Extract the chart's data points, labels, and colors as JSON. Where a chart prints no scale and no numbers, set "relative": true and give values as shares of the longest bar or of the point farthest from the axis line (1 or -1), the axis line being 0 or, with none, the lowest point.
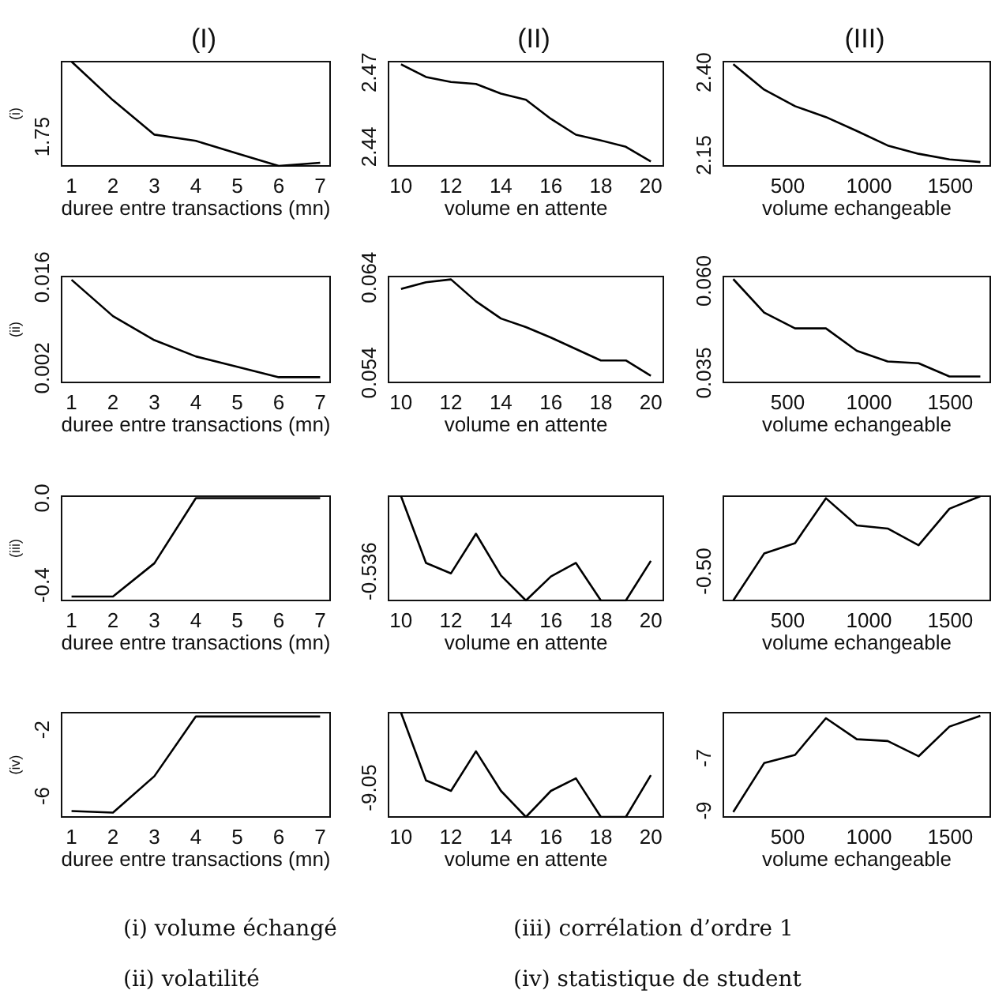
{
  "chart_data": [
    {
      "type": "line",
      "title": "(I)",
      "xlabel": "duree entre transactions (mn)",
      "ylabel": "(i)",
      "relative": true,
      "x": [
        1,
        2,
        3,
        4,
        5,
        6,
        7
      ],
      "values": [
        1,
        0.63,
        0.3,
        0.24,
        0.12,
        0,
        0.03
      ],
      "color": "#000000",
      "xlim": [
        0.76,
        7.24
      ],
      "xticks": [
        1,
        2,
        3,
        4,
        5,
        6,
        7
      ],
      "annotations": [
        "1.75"
      ]
    },
    {
      "type": "line",
      "title": "(II)",
      "xlabel": "volume en attente",
      "x": [
        10,
        11,
        12,
        13,
        14,
        15,
        16,
        17,
        18,
        19,
        20
      ],
      "values": [
        2.4733,
        2.4682,
        2.4662,
        2.4654,
        2.4615,
        2.459,
        2.4513,
        2.4449,
        2.4426,
        2.44,
        2.4341
      ],
      "color": "#000000",
      "xlim": [
        9.5,
        20.5
      ],
      "xticks": [
        10,
        12,
        14,
        16,
        18,
        20
      ],
      "ylim": [
        2.4323,
        2.4744
      ],
      "yticks": [
        2.44,
        2.47
      ]
    },
    {
      "type": "line",
      "title": "(III)",
      "xlabel": "volume echangeable",
      "x": [
        165,
        355,
        545,
        735,
        925,
        1115,
        1305,
        1495,
        1685
      ],
      "values": [
        2.425,
        2.348,
        2.298,
        2.265,
        2.223,
        2.179,
        2.154,
        2.137,
        2.129
      ],
      "color": "#000000",
      "xlim": [
        104,
        1746
      ],
      "xticks": [
        500,
        1000,
        1500
      ],
      "ylim": [
        2.1173,
        2.4327
      ],
      "yticks": [
        2.15,
        {
          "value": 2.4,
          "label": "2.40"
        }
      ]
    },
    {
      "type": "line",
      "xlabel": "duree entre transactions (mn)",
      "ylabel": "(ii)",
      "x": [
        1,
        2,
        3,
        4,
        5,
        6,
        7
      ],
      "values": [
        0.0156,
        0.01,
        0.0063,
        0.0038,
        0.0022,
        0.0006,
        0.0006
      ],
      "color": "#000000",
      "xlim": [
        0.76,
        7.24
      ],
      "xticks": [
        1,
        2,
        3,
        4,
        5,
        6,
        7
      ],
      "ylim": [
        -0.0002,
        0.0161
      ],
      "yticks": [
        0.002,
        0.016
      ]
    },
    {
      "type": "line",
      "xlabel": "volume en attente",
      "x": [
        10,
        11,
        12,
        13,
        14,
        15,
        16,
        17,
        18,
        19,
        20
      ],
      "values": [
        0.0628,
        0.0635,
        0.0638,
        0.0615,
        0.0597,
        0.0588,
        0.0577,
        0.0565,
        0.0553,
        0.0553,
        0.0537
      ],
      "color": "#000000",
      "xlim": [
        9.5,
        20.5
      ],
      "xticks": [
        10,
        12,
        14,
        16,
        18,
        20
      ],
      "ylim": [
        0.053,
        0.0641
      ],
      "yticks": [
        0.054,
        0.064
      ]
    },
    {
      "type": "line",
      "xlabel": "volume echangeable",
      "x": [
        165,
        355,
        545,
        735,
        925,
        1115,
        1305,
        1495,
        1685
      ],
      "values": [
        0.0605,
        0.0514,
        0.0471,
        0.0471,
        0.041,
        0.0381,
        0.0376,
        0.034,
        0.034
      ],
      "color": "#000000",
      "xlim": [
        104,
        1746
      ],
      "xticks": [
        500,
        1000,
        1500
      ],
      "ylim": [
        0.0324,
        0.0612
      ],
      "yticks": [
        0.035,
        {
          "value": 0.06,
          "label": "0.060"
        }
      ]
    },
    {
      "type": "line",
      "xlabel": "duree entre transactions (mn)",
      "ylabel": "(iii)",
      "x": [
        1,
        2,
        3,
        4,
        5,
        6,
        7
      ],
      "values": [
        -0.452,
        -0.452,
        -0.299,
        0,
        0,
        0,
        0
      ],
      "color": "#000000",
      "xlim": [
        0.76,
        7.24
      ],
      "xticks": [
        1,
        2,
        3,
        4,
        5,
        6,
        7
      ],
      "ylim": [
        -0.47,
        0.009
      ],
      "yticks": [
        -0.4,
        {
          "value": 0,
          "label": "0.0"
        }
      ]
    },
    {
      "type": "line",
      "xlabel": "volume en attente",
      "relative": true,
      "x": [
        10,
        11,
        12,
        13,
        14,
        15,
        16,
        17,
        18,
        19,
        20
      ],
      "values": [
        1,
        0.36,
        0.26,
        0.64,
        0.24,
        0,
        0.23,
        0.36,
        0,
        0,
        0.38
      ],
      "color": "#000000",
      "xlim": [
        9.5,
        20.5
      ],
      "xticks": [
        10,
        12,
        14,
        16,
        18,
        20
      ],
      "annotations": [
        "-0.536"
      ]
    },
    {
      "type": "line",
      "xlabel": "volume echangeable",
      "relative": true,
      "x": [
        165,
        355,
        545,
        735,
        925,
        1115,
        1305,
        1495,
        1685
      ],
      "values": [
        0,
        0.45,
        0.55,
        0.98,
        0.72,
        0.69,
        0.53,
        0.88,
        1
      ],
      "color": "#000000",
      "xlim": [
        104,
        1746
      ],
      "xticks": [
        500,
        1000,
        1500
      ],
      "annotations": [
        "-0.50"
      ]
    },
    {
      "type": "line",
      "xlabel": "duree entre transactions (mn)",
      "ylabel": "(iv)",
      "x": [
        1,
        2,
        3,
        4,
        5,
        6,
        7
      ],
      "values": [
        -6.9,
        -7.0,
        -4.8,
        -1.2,
        -1.2,
        -1.2,
        -1.2
      ],
      "color": "#000000",
      "xlim": [
        0.76,
        7.24
      ],
      "xticks": [
        1,
        2,
        3,
        4,
        5,
        6,
        7
      ],
      "ylim": [
        -7.26,
        -0.97
      ],
      "yticks": [
        -6,
        -2
      ]
    },
    {
      "type": "line",
      "xlabel": "volume en attente",
      "relative": true,
      "x": [
        10,
        11,
        12,
        13,
        14,
        15,
        16,
        17,
        18,
        19,
        20
      ],
      "values": [
        1,
        0.35,
        0.25,
        0.63,
        0.25,
        0,
        0.25,
        0.37,
        0,
        0,
        0.4
      ],
      "color": "#000000",
      "xlim": [
        9.5,
        20.5
      ],
      "xticks": [
        10,
        12,
        14,
        16,
        18,
        20
      ],
      "annotations": [
        "-9.05"
      ]
    },
    {
      "type": "line",
      "xlabel": "volume echangeable",
      "x": [
        165,
        355,
        545,
        735,
        925,
        1115,
        1305,
        1495,
        1685
      ],
      "values": [
        -9.05,
        -7.19,
        -6.88,
        -5.48,
        -6.28,
        -6.35,
        -6.93,
        -5.8,
        -5.39
      ],
      "color": "#000000",
      "xlim": [
        104,
        1746
      ],
      "xticks": [
        500,
        1000,
        1500
      ],
      "ylim": [
        -9.24,
        -5.27
      ],
      "yticks": [
        -9,
        -7
      ],
      "annotations": [
        "(i) volume échangé",
        "(iii) corrélation d’ordre 1",
        "(ii) volatilité",
        "(iv) statistique de student"
      ]
    }
  ]
}
